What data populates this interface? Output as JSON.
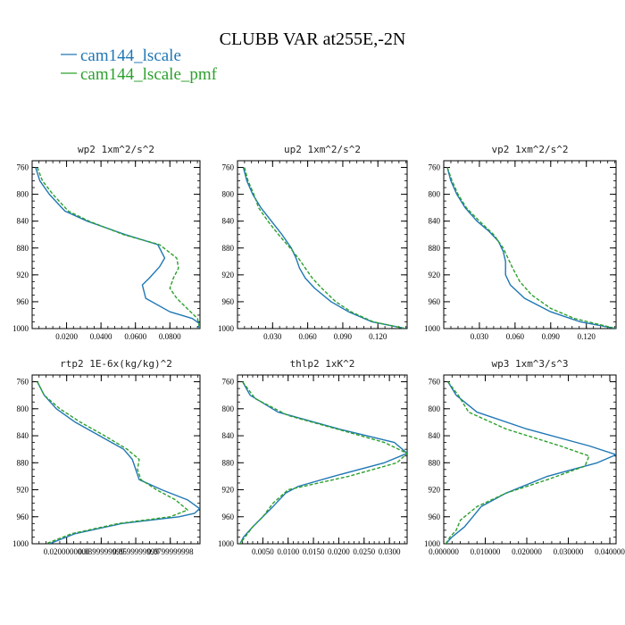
{
  "figure": {
    "title": "CLUBB VAR at255E,-2N",
    "legend": [
      {
        "label": "cam144_lscale",
        "color": "#1f77b4"
      },
      {
        "label": "cam144_lscale_pmf",
        "color": "#2ca02c"
      }
    ]
  },
  "chart_data": [
    {
      "type": "line",
      "title": "wp2   1xm^2/s^2",
      "xlim": [
        0.0,
        0.0975
      ],
      "ylim": [
        1000,
        750
      ],
      "xticks": [
        "0.0200",
        "0.0400",
        "0.0600",
        "0.0800"
      ],
      "xtick_values": [
        0.02,
        0.04,
        0.06,
        0.08
      ],
      "yticks": [
        760,
        800,
        840,
        880,
        920,
        960,
        1000
      ],
      "series": [
        {
          "name": "cam144_lscale",
          "style": "solid",
          "color": "#1f77b4",
          "y": [
            760,
            780,
            800,
            825,
            840,
            860,
            875,
            895,
            908,
            925,
            935,
            955,
            975,
            985,
            993,
            1000
          ],
          "x": [
            0.002,
            0.0045,
            0.01,
            0.019,
            0.032,
            0.054,
            0.073,
            0.077,
            0.074,
            0.068,
            0.064,
            0.066,
            0.08,
            0.093,
            0.0975,
            0.096
          ]
        },
        {
          "name": "cam144_lscale_pmf",
          "style": "dashed",
          "color": "#2ca02c",
          "y": [
            760,
            780,
            800,
            825,
            840,
            860,
            875,
            895,
            910,
            925,
            940,
            955,
            970,
            985,
            1000
          ],
          "x": [
            0.003,
            0.006,
            0.012,
            0.021,
            0.033,
            0.053,
            0.074,
            0.084,
            0.085,
            0.082,
            0.08,
            0.084,
            0.09,
            0.096,
            0.0975
          ]
        }
      ]
    },
    {
      "type": "line",
      "title": "up2   1xm^2/s^2",
      "xlim": [
        0.0,
        0.145
      ],
      "ylim": [
        1000,
        750
      ],
      "xticks": [
        "0.030",
        "0.060",
        "0.090",
        "0.120"
      ],
      "xtick_values": [
        0.03,
        0.06,
        0.09,
        0.12
      ],
      "yticks": [
        760,
        800,
        840,
        880,
        920,
        960,
        1000
      ],
      "series": [
        {
          "name": "cam144_lscale",
          "style": "solid",
          "color": "#1f77b4",
          "y": [
            760,
            780,
            800,
            820,
            840,
            860,
            880,
            895,
            910,
            925,
            940,
            960,
            975,
            990,
            1000
          ],
          "x": [
            0.005,
            0.008,
            0.013,
            0.02,
            0.029,
            0.038,
            0.046,
            0.05,
            0.053,
            0.058,
            0.066,
            0.08,
            0.095,
            0.115,
            0.144
          ]
        },
        {
          "name": "cam144_lscale_pmf",
          "style": "dashed",
          "color": "#2ca02c",
          "y": [
            760,
            780,
            800,
            820,
            840,
            860,
            880,
            895,
            910,
            925,
            940,
            960,
            975,
            990,
            1000
          ],
          "x": [
            0.006,
            0.009,
            0.014,
            0.018,
            0.026,
            0.035,
            0.045,
            0.052,
            0.058,
            0.064,
            0.072,
            0.084,
            0.097,
            0.116,
            0.144
          ]
        }
      ]
    },
    {
      "type": "line",
      "title": "vp2   1xm^2/s^2",
      "xlim": [
        0.0,
        0.145
      ],
      "ylim": [
        1000,
        750
      ],
      "xticks": [
        "0.030",
        "0.060",
        "0.090",
        "0.120"
      ],
      "xtick_values": [
        0.03,
        0.06,
        0.09,
        0.12
      ],
      "yticks": [
        760,
        800,
        840,
        880,
        920,
        960,
        1000
      ],
      "series": [
        {
          "name": "cam144_lscale",
          "style": "solid",
          "color": "#1f77b4",
          "y": [
            760,
            780,
            800,
            820,
            840,
            855,
            870,
            885,
            900,
            920,
            935,
            955,
            975,
            990,
            1000
          ],
          "x": [
            0.003,
            0.006,
            0.011,
            0.018,
            0.028,
            0.038,
            0.046,
            0.05,
            0.052,
            0.052,
            0.056,
            0.068,
            0.09,
            0.115,
            0.145
          ]
        },
        {
          "name": "cam144_lscale_pmf",
          "style": "dashed",
          "color": "#2ca02c",
          "y": [
            760,
            780,
            800,
            820,
            840,
            860,
            880,
            895,
            910,
            930,
            950,
            970,
            985,
            1000
          ],
          "x": [
            0.003,
            0.007,
            0.012,
            0.019,
            0.03,
            0.042,
            0.05,
            0.054,
            0.058,
            0.064,
            0.074,
            0.09,
            0.11,
            0.145
          ]
        }
      ]
    },
    {
      "type": "line",
      "title": "rtp2   1E-6x(kg/kg)^2",
      "xlim": [
        0.0,
        0.0972
      ],
      "ylim": [
        1000,
        750
      ],
      "xticks": [
        "0.0200000000",
        "0.0399999999",
        "0.0599999999",
        "0.0799999998"
      ],
      "xtick_values": [
        0.02,
        0.04,
        0.06,
        0.08
      ],
      "yticks": [
        760,
        800,
        840,
        880,
        920,
        960,
        1000
      ],
      "series": [
        {
          "name": "cam144_lscale",
          "style": "solid",
          "color": "#1f77b4",
          "y": [
            760,
            780,
            800,
            820,
            840,
            860,
            875,
            890,
            905,
            920,
            935,
            948,
            955,
            960,
            970,
            985,
            1000
          ],
          "x": [
            0.003,
            0.007,
            0.014,
            0.025,
            0.039,
            0.053,
            0.058,
            0.06,
            0.062,
            0.075,
            0.09,
            0.097,
            0.094,
            0.085,
            0.052,
            0.025,
            0.01
          ]
        },
        {
          "name": "cam144_lscale_pmf",
          "style": "dashed",
          "color": "#2ca02c",
          "y": [
            760,
            780,
            800,
            820,
            840,
            860,
            875,
            890,
            905,
            920,
            935,
            950,
            960,
            970,
            985,
            1000
          ],
          "x": [
            0.003,
            0.007,
            0.016,
            0.028,
            0.042,
            0.055,
            0.062,
            0.061,
            0.063,
            0.072,
            0.083,
            0.09,
            0.08,
            0.05,
            0.023,
            0.008
          ]
        }
      ]
    },
    {
      "type": "line",
      "title": "thlp2   1xK^2",
      "xlim": [
        0.0,
        0.0335
      ],
      "ylim": [
        1000,
        750
      ],
      "xticks": [
        "0.0050",
        "0.0100",
        "0.0150",
        "0.0200",
        "0.0250",
        "0.0300"
      ],
      "xtick_values": [
        0.005,
        0.01,
        0.015,
        0.02,
        0.025,
        0.03
      ],
      "yticks": [
        760,
        800,
        840,
        880,
        920,
        960,
        1000
      ],
      "series": [
        {
          "name": "cam144_lscale",
          "style": "solid",
          "color": "#1f77b4",
          "y": [
            760,
            780,
            805,
            830,
            850,
            866,
            880,
            900,
            915,
            925,
            945,
            960,
            975,
            990,
            1000
          ],
          "x": [
            0.001,
            0.0025,
            0.008,
            0.02,
            0.031,
            0.0335,
            0.029,
            0.019,
            0.012,
            0.0095,
            0.007,
            0.005,
            0.003,
            0.0012,
            0.0005
          ]
        },
        {
          "name": "cam144_lscale_pmf",
          "style": "dashed",
          "color": "#2ca02c",
          "y": [
            760,
            785,
            810,
            835,
            850,
            866,
            880,
            900,
            920,
            940,
            960,
            975,
            990,
            1000
          ],
          "x": [
            0.001,
            0.0035,
            0.01,
            0.022,
            0.029,
            0.0335,
            0.0315,
            0.022,
            0.01,
            0.007,
            0.005,
            0.003,
            0.0015,
            0.0005
          ]
        }
      ]
    },
    {
      "type": "line",
      "title": "wp3   1xm^3/s^3",
      "xlim": [
        0.0,
        0.0415
      ],
      "ylim": [
        1000,
        750
      ],
      "xticks": [
        "0.000000",
        "0.010000",
        "0.020000",
        "0.030000",
        "0.040000"
      ],
      "xtick_values": [
        0.0,
        0.01,
        0.02,
        0.03,
        0.04
      ],
      "yticks": [
        760,
        800,
        840,
        880,
        920,
        960,
        1000
      ],
      "series": [
        {
          "name": "cam144_lscale",
          "style": "solid",
          "color": "#1f77b4",
          "y": [
            760,
            780,
            805,
            830,
            855,
            868,
            880,
            900,
            925,
            945,
            960,
            975,
            990,
            1000
          ],
          "x": [
            0.001,
            0.003,
            0.008,
            0.02,
            0.035,
            0.0415,
            0.037,
            0.025,
            0.015,
            0.009,
            0.007,
            0.005,
            0.002,
            0.0005
          ]
        },
        {
          "name": "cam144_lscale_pmf",
          "style": "dashed",
          "color": "#2ca02c",
          "y": [
            760,
            780,
            805,
            830,
            855,
            870,
            885,
            905,
            925,
            945,
            965,
            980,
            990,
            1000
          ],
          "x": [
            0.001,
            0.0035,
            0.006,
            0.015,
            0.028,
            0.035,
            0.034,
            0.025,
            0.015,
            0.008,
            0.004,
            0.003,
            0.0015,
            0.0005
          ]
        }
      ]
    }
  ]
}
